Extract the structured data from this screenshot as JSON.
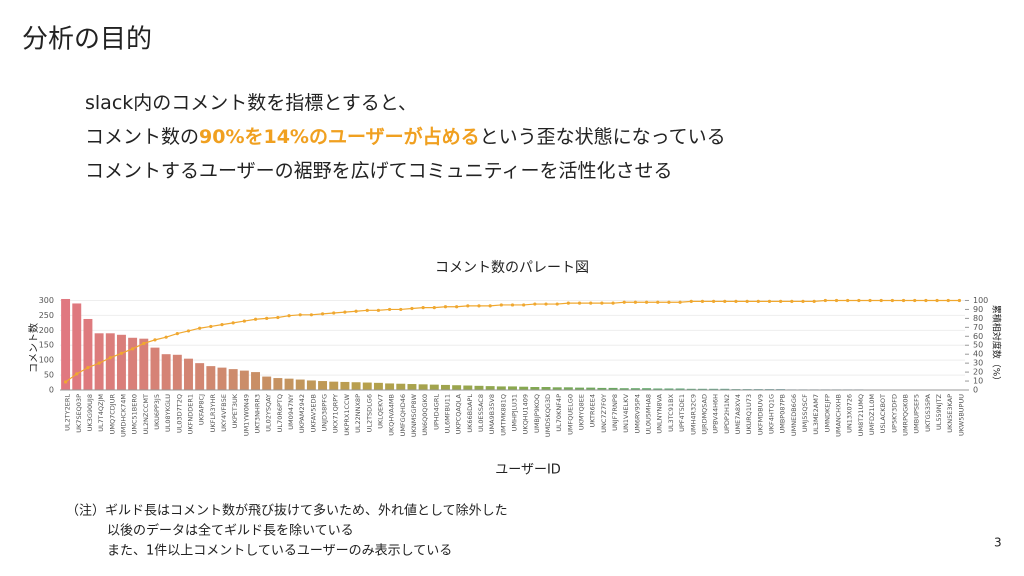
{
  "title": "分析の目的",
  "bullets": [
    [
      "slack内のコメント数を指標とすると、"
    ],
    [
      "コメント数の",
      "90%を14%のユーザーが占める",
      "という歪な状態になっている"
    ],
    [
      "コメントするユーザーの裾野を広げてコミュニティーを活性化させる"
    ]
  ],
  "notes": [
    "（注）ギルド長はコメント数が飛び抜けて多いため、外れ値として除外した",
    "以後のデータは全てギルド長を除いている",
    "また、1件以上コメントしているユーザーのみ表示している"
  ],
  "page_number": "3",
  "chart_data": {
    "type": "pareto",
    "title": "コメント数のパレート図",
    "x_label": "ユーザーID",
    "y_label": "コメント数",
    "y2_label": "累積相対度数（%）",
    "categories": [
      "UL2TY2ERL",
      "UK7SEQ03P",
      "UK3G90UJ8",
      "UL7T4QZJM",
      "UMQ7CDJUR",
      "UMDHCK74M",
      "UMC51BER0",
      "UL2NZCCMT",
      "UKU6PP3J5",
      "UL08YKGLU",
      "UL03D7T2Q",
      "UKFNDDER1",
      "UKFAP8CJ",
      "UKFLR3YHR",
      "UKY4VFB5E",
      "UKPET3UK",
      "UM1YW0N49",
      "UKT3NHRR3",
      "UL02YSQAY",
      "UL70R6PTQ",
      "UM0947NY",
      "UKPAM2942",
      "UKFAV5EDB",
      "UNJD38PFG",
      "UKX71QRPY",
      "UKPRX1CCW",
      "UL22NNX8P",
      "UL2TSDLG6",
      "UKLQEKV7",
      "UKQHVA4MB",
      "UMFGQHD46",
      "UKNMSGP8W",
      "UN6Q0QGK0",
      "UPHD4GRL",
      "UL6MFBU11",
      "UKPCQAQLA",
      "UK66BDAPL",
      "UL0ESSAC8",
      "UMA9B35V8",
      "UMTMK881Q",
      "UMHPJLU31",
      "UKQHU1409",
      "UMBJP9KOQ",
      "UMDSKQG3D",
      "UL70KNF4P",
      "UMFQUELG0",
      "UKMYQ8EE",
      "UKTR6EE4",
      "UNC7Z7F0Y",
      "UNJF7RNP8",
      "UN1V4ELKV",
      "UM6RV95P4",
      "UL0U5MHA8",
      "UNLNYN8VA",
      "UL3TC91BX",
      "UPF4T5DE1",
      "UMH4R32C9",
      "UJRDMQSAD",
      "UPBV44H6H",
      "UPDP2H1N2",
      "UME7A8XV4",
      "UKURQ1U73",
      "UKFMDBUV9",
      "UKF4HTQ1G",
      "UMBP087PB",
      "UMNEDB6G6",
      "UMJ5SQSCF",
      "UL3ME2AM7",
      "UMNDKEJFP",
      "UMANCHXHB",
      "UN13X0726",
      "UM8T21UMQ",
      "UMFDZ1L0M",
      "USLACKBOT",
      "UP5KY3DFD",
      "UMRPQGK0B",
      "UMBUPSEF5",
      "UKTGS35PA",
      "UL559NJTZ",
      "UKN5E3KAP",
      "UKW5BUPUU"
    ],
    "series": [
      {
        "name": "コメント数",
        "values": [
          305,
          290,
          238,
          190,
          190,
          185,
          175,
          172,
          142,
          120,
          118,
          105,
          90,
          80,
          75,
          70,
          65,
          60,
          45,
          40,
          38,
          35,
          32,
          30,
          28,
          27,
          26,
          25,
          24,
          22,
          21,
          20,
          19,
          18,
          17,
          16,
          15,
          14,
          13,
          12,
          12,
          11,
          10,
          10,
          9,
          9,
          8,
          8,
          7,
          7,
          6,
          6,
          6,
          5,
          5,
          5,
          4,
          4,
          4,
          4,
          3,
          3,
          3,
          3,
          3,
          2,
          2,
          2,
          2,
          2,
          2,
          2,
          1,
          1,
          1,
          1,
          1,
          1,
          1,
          1,
          1
        ]
      },
      {
        "name": "累積相対度数",
        "axis": "y2",
        "color": "#f0a830",
        "values": [
          9,
          18,
          25,
          30,
          36,
          41,
          46,
          52,
          56,
          59,
          63,
          66,
          69,
          71,
          73,
          75,
          77,
          79,
          80,
          81,
          83,
          84,
          84,
          85,
          86,
          87,
          88,
          89,
          89,
          90,
          90,
          91,
          92,
          92,
          93,
          93,
          94,
          94,
          94,
          95,
          95,
          95,
          96,
          96,
          96,
          97,
          97,
          97,
          97,
          97,
          98,
          98,
          98,
          98,
          98,
          98,
          99,
          99,
          99,
          99,
          99,
          99,
          99,
          99,
          99,
          99,
          99,
          99,
          100,
          100,
          100,
          100,
          100,
          100,
          100,
          100,
          100,
          100,
          100,
          100,
          100
        ]
      }
    ],
    "bar_gradient": [
      "#e07880",
      "#d08870",
      "#b8a04c",
      "#8aa84e",
      "#5aa86a",
      "#6a9eb0",
      "#a8b0c4"
    ],
    "ylim": [
      0,
      315
    ],
    "yticks": [
      0,
      50,
      100,
      150,
      200,
      250,
      300
    ],
    "y2lim": [
      0,
      105
    ],
    "y2ticks": [
      0,
      10,
      20,
      30,
      40,
      50,
      60,
      70,
      80,
      90,
      100
    ],
    "grid": true
  }
}
